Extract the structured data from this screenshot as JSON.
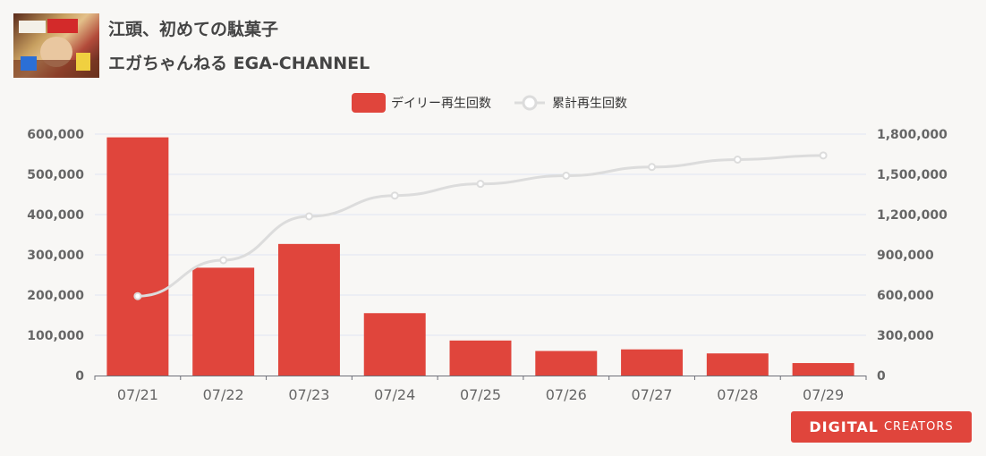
{
  "video": {
    "title": "江頭、初めての駄菓子",
    "channel": "エガちゃんねる EGA-CHANNEL"
  },
  "brand": {
    "logo_text_a": "DIGITAL",
    "logo_text_b": "CREATORS"
  },
  "colors": {
    "bar": "#e0453c",
    "line": "#dcdcdc",
    "grid": "#dfe6f2",
    "axis_text": "#666666"
  },
  "chart_data": {
    "type": "bar",
    "categories": [
      "07/21",
      "07/22",
      "07/23",
      "07/24",
      "07/25",
      "07/26",
      "07/27",
      "07/28",
      "07/29"
    ],
    "series": [
      {
        "name": "デイリー再生回数",
        "type": "bar",
        "axis": "left",
        "values": [
          592000,
          268000,
          327000,
          155000,
          87000,
          61000,
          65000,
          55000,
          31000
        ]
      },
      {
        "name": "累計再生回数",
        "type": "line",
        "axis": "right",
        "values": [
          592000,
          860000,
          1187000,
          1342000,
          1429000,
          1490000,
          1555000,
          1610000,
          1641000
        ]
      }
    ],
    "y_left": {
      "min": 0,
      "max": 600000,
      "ticks": [
        "0",
        "100,000",
        "200,000",
        "300,000",
        "400,000",
        "500,000",
        "600,000"
      ]
    },
    "y_right": {
      "min": 0,
      "max": 1800000,
      "ticks": [
        "0",
        "300,000",
        "600,000",
        "900,000",
        "1,200,000",
        "1,500,000",
        "1,800,000"
      ]
    },
    "legend": "top-center",
    "grid": true
  }
}
